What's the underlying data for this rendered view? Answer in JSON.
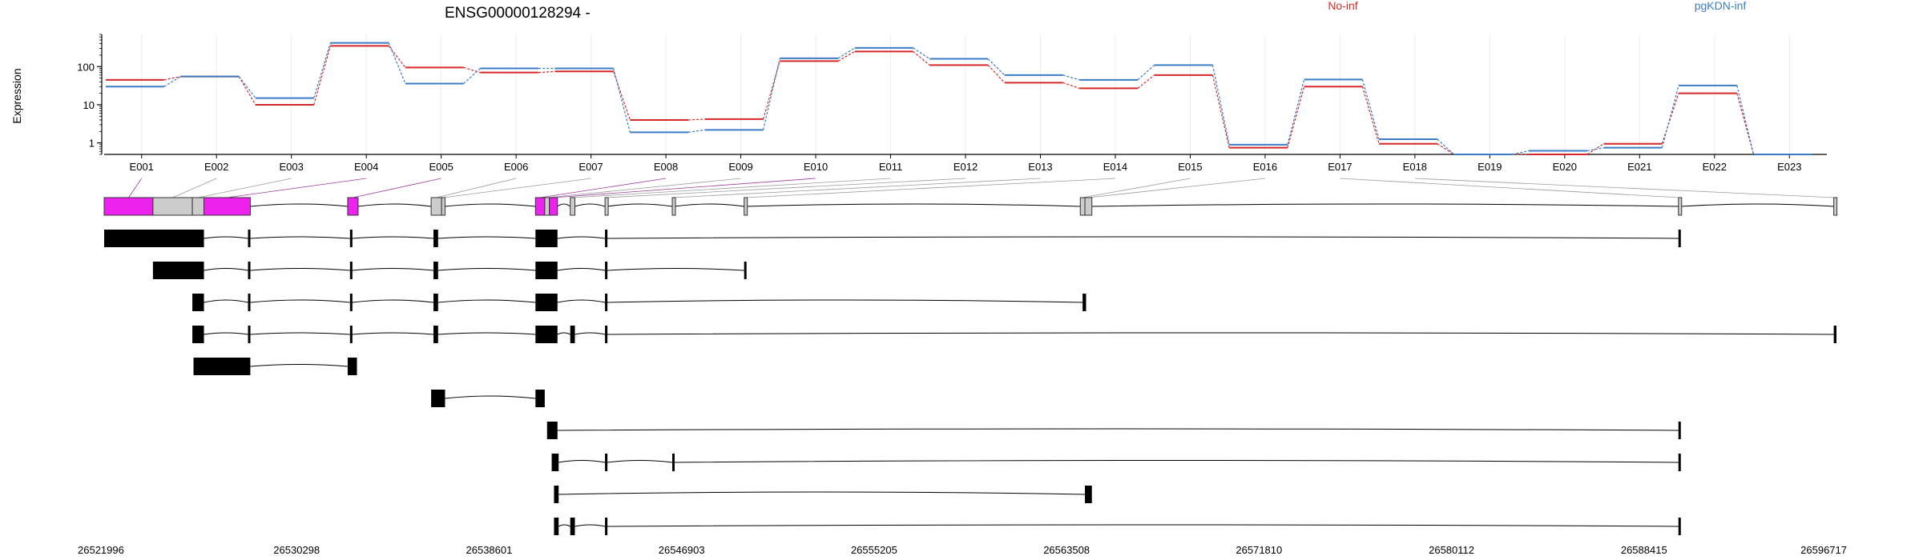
{
  "chart_data": {
    "type": "line",
    "title": "ENSG00000128294 -",
    "ylabel": "Expression",
    "yscale": "log",
    "ylim": [
      0.5,
      700
    ],
    "yticks": [
      "1",
      "10",
      "100"
    ],
    "categories": [
      "E001",
      "E002",
      "E003",
      "E004",
      "E005",
      "E006",
      "E007",
      "E008",
      "E009",
      "E010",
      "E011",
      "E012",
      "E013",
      "E014",
      "E015",
      "E016",
      "E017",
      "E018",
      "E019",
      "E020",
      "E021",
      "E022",
      "E023"
    ],
    "series": [
      {
        "name": "No-inf",
        "color": "#d62728",
        "values": [
          45,
          55,
          10,
          350,
          95,
          70,
          75,
          4,
          4.2,
          140,
          250,
          110,
          38,
          27,
          60,
          0.75,
          30,
          0.95,
          0.5,
          0.5,
          0.95,
          20,
          0.5
        ]
      },
      {
        "name": "pgKDN-inf",
        "color": "#3b7dc4",
        "values": [
          30,
          55,
          15,
          420,
          36,
          90,
          90,
          1.9,
          2.2,
          165,
          310,
          160,
          60,
          45,
          110,
          0.9,
          46,
          1.25,
          0.5,
          0.62,
          0.75,
          32,
          0.5
        ]
      }
    ],
    "genomic_axis": {
      "range": [
        26521996,
        26596717
      ],
      "ticks": [
        "26521996",
        "26530298",
        "26538601",
        "26546903",
        "26555205",
        "26563508",
        "26571810",
        "26580112",
        "26588415",
        "26596717"
      ]
    },
    "exon_model": {
      "exons": [
        {
          "start": 26521996,
          "end": 26524100,
          "highlight": true
        },
        {
          "start": 26524100,
          "end": 26525800,
          "highlight": false
        },
        {
          "start": 26525800,
          "end": 26526300,
          "highlight": false
        },
        {
          "start": 26526300,
          "end": 26528300,
          "highlight": true
        },
        {
          "start": 26532500,
          "end": 26532950,
          "highlight": true
        },
        {
          "start": 26536100,
          "end": 26536550,
          "highlight": false
        },
        {
          "start": 26536550,
          "end": 26536700,
          "highlight": false
        },
        {
          "start": 26540600,
          "end": 26541000,
          "highlight": true
        },
        {
          "start": 26541000,
          "end": 26541200,
          "highlight": false
        },
        {
          "start": 26541200,
          "end": 26541550,
          "highlight": true
        },
        {
          "start": 26542100,
          "end": 26542300,
          "highlight": false
        },
        {
          "start": 26543600,
          "end": 26543700,
          "highlight": false
        },
        {
          "start": 26546500,
          "end": 26546600,
          "highlight": false
        },
        {
          "start": 26549600,
          "end": 26549700,
          "highlight": false
        },
        {
          "start": 26564100,
          "end": 26564300,
          "highlight": false
        },
        {
          "start": 26564300,
          "end": 26564600,
          "highlight": false
        },
        {
          "start": 26589900,
          "end": 26590000,
          "highlight": false
        },
        {
          "start": 26596600,
          "end": 26596717,
          "highlight": false
        }
      ]
    },
    "transcripts": [
      {
        "exons": [
          [
            26521996,
            26526300
          ],
          [
            26528200,
            26528300
          ],
          [
            26532600,
            26532700
          ],
          [
            26536200,
            26536400
          ],
          [
            26540600,
            26541550
          ],
          [
            26543600,
            26543700
          ],
          [
            26589900,
            26590000
          ]
        ]
      },
      {
        "exons": [
          [
            26524100,
            26526300
          ],
          [
            26528200,
            26528300
          ],
          [
            26532600,
            26532700
          ],
          [
            26536200,
            26536400
          ],
          [
            26540600,
            26541550
          ],
          [
            26543600,
            26543700
          ],
          [
            26549600,
            26549700
          ]
        ]
      },
      {
        "exons": [
          [
            26525800,
            26526300
          ],
          [
            26528200,
            26528300
          ],
          [
            26532600,
            26532700
          ],
          [
            26536200,
            26536400
          ],
          [
            26540600,
            26541550
          ],
          [
            26543600,
            26543700
          ],
          [
            26564200,
            26564350
          ]
        ]
      },
      {
        "exons": [
          [
            26525800,
            26526300
          ],
          [
            26528200,
            26528300
          ],
          [
            26532600,
            26532700
          ],
          [
            26536200,
            26536400
          ],
          [
            26540600,
            26541550
          ],
          [
            26542100,
            26542300
          ],
          [
            26543600,
            26543700
          ],
          [
            26596600,
            26596717
          ]
        ]
      },
      {
        "exons": [
          [
            26525850,
            26528300
          ],
          [
            26532500,
            26532900
          ]
        ]
      },
      {
        "exons": [
          [
            26536100,
            26536700
          ],
          [
            26540600,
            26541000
          ]
        ]
      },
      {
        "exons": [
          [
            26541100,
            26541550
          ],
          [
            26589900,
            26590000
          ]
        ]
      },
      {
        "exons": [
          [
            26541300,
            26541600
          ],
          [
            26543600,
            26543700
          ],
          [
            26546500,
            26546600
          ],
          [
            26589900,
            26590000
          ]
        ]
      },
      {
        "exons": [
          [
            26541400,
            26541600
          ],
          [
            26564300,
            26564600
          ]
        ]
      },
      {
        "exons": [
          [
            26541400,
            26541600
          ],
          [
            26542100,
            26542300
          ],
          [
            26543600,
            26543700
          ],
          [
            26589900,
            26590000
          ]
        ]
      }
    ]
  }
}
